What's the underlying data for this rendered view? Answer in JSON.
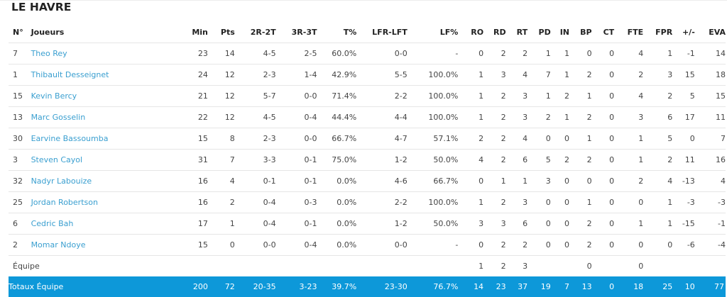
{
  "team_name": "LE HAVRE",
  "columns": [
    "N°",
    "Joueurs",
    "Min",
    "Pts",
    "2R-2T",
    "3R-3T",
    "T%",
    "LFR-LFT",
    "LF%",
    "RO",
    "RD",
    "RT",
    "PD",
    "IN",
    "BP",
    "CT",
    "FTE",
    "FPR",
    "+/-",
    "EVA"
  ],
  "players": [
    {
      "num": "7",
      "name": "Theo Rey",
      "min": "23",
      "pts": "14",
      "r2": "4-5",
      "r3": "2-5",
      "tpct": "60.0%",
      "lf": "0-0",
      "lfpct": "-",
      "ro": "0",
      "rd": "2",
      "rt": "2",
      "pd": "1",
      "in": "1",
      "bp": "0",
      "ct": "0",
      "fte": "4",
      "fpr": "1",
      "pm": "-1",
      "eva": "14"
    },
    {
      "num": "1",
      "name": "Thibault Desseignet",
      "min": "24",
      "pts": "12",
      "r2": "2-3",
      "r3": "1-4",
      "tpct": "42.9%",
      "lf": "5-5",
      "lfpct": "100.0%",
      "ro": "1",
      "rd": "3",
      "rt": "4",
      "pd": "7",
      "in": "1",
      "bp": "2",
      "ct": "0",
      "fte": "2",
      "fpr": "3",
      "pm": "15",
      "eva": "18"
    },
    {
      "num": "15",
      "name": "Kevin Bercy",
      "min": "21",
      "pts": "12",
      "r2": "5-7",
      "r3": "0-0",
      "tpct": "71.4%",
      "lf": "2-2",
      "lfpct": "100.0%",
      "ro": "1",
      "rd": "2",
      "rt": "3",
      "pd": "1",
      "in": "2",
      "bp": "1",
      "ct": "0",
      "fte": "4",
      "fpr": "2",
      "pm": "5",
      "eva": "15"
    },
    {
      "num": "13",
      "name": "Marc Gosselin",
      "min": "22",
      "pts": "12",
      "r2": "4-5",
      "r3": "0-4",
      "tpct": "44.4%",
      "lf": "4-4",
      "lfpct": "100.0%",
      "ro": "1",
      "rd": "2",
      "rt": "3",
      "pd": "2",
      "in": "1",
      "bp": "2",
      "ct": "0",
      "fte": "3",
      "fpr": "6",
      "pm": "17",
      "eva": "11"
    },
    {
      "num": "30",
      "name": "Earvine Bassoumba",
      "min": "15",
      "pts": "8",
      "r2": "2-3",
      "r3": "0-0",
      "tpct": "66.7%",
      "lf": "4-7",
      "lfpct": "57.1%",
      "ro": "2",
      "rd": "2",
      "rt": "4",
      "pd": "0",
      "in": "0",
      "bp": "1",
      "ct": "0",
      "fte": "1",
      "fpr": "5",
      "pm": "0",
      "eva": "7"
    },
    {
      "num": "3",
      "name": "Steven Cayol",
      "min": "31",
      "pts": "7",
      "r2": "3-3",
      "r3": "0-1",
      "tpct": "75.0%",
      "lf": "1-2",
      "lfpct": "50.0%",
      "ro": "4",
      "rd": "2",
      "rt": "6",
      "pd": "5",
      "in": "2",
      "bp": "2",
      "ct": "0",
      "fte": "1",
      "fpr": "2",
      "pm": "11",
      "eva": "16"
    },
    {
      "num": "32",
      "name": "Nadyr Labouize",
      "min": "16",
      "pts": "4",
      "r2": "0-1",
      "r3": "0-1",
      "tpct": "0.0%",
      "lf": "4-6",
      "lfpct": "66.7%",
      "ro": "0",
      "rd": "1",
      "rt": "1",
      "pd": "3",
      "in": "0",
      "bp": "0",
      "ct": "0",
      "fte": "2",
      "fpr": "4",
      "pm": "-13",
      "eva": "4"
    },
    {
      "num": "25",
      "name": "Jordan Robertson",
      "min": "16",
      "pts": "2",
      "r2": "0-4",
      "r3": "0-3",
      "tpct": "0.0%",
      "lf": "2-2",
      "lfpct": "100.0%",
      "ro": "1",
      "rd": "2",
      "rt": "3",
      "pd": "0",
      "in": "0",
      "bp": "1",
      "ct": "0",
      "fte": "0",
      "fpr": "1",
      "pm": "-3",
      "eva": "-3"
    },
    {
      "num": "6",
      "name": "Cedric Bah",
      "min": "17",
      "pts": "1",
      "r2": "0-4",
      "r3": "0-1",
      "tpct": "0.0%",
      "lf": "1-2",
      "lfpct": "50.0%",
      "ro": "3",
      "rd": "3",
      "rt": "6",
      "pd": "0",
      "in": "0",
      "bp": "2",
      "ct": "0",
      "fte": "1",
      "fpr": "1",
      "pm": "-15",
      "eva": "-1"
    },
    {
      "num": "2",
      "name": "Momar Ndoye",
      "min": "15",
      "pts": "0",
      "r2": "0-0",
      "r3": "0-4",
      "tpct": "0.0%",
      "lf": "0-0",
      "lfpct": "-",
      "ro": "0",
      "rd": "2",
      "rt": "2",
      "pd": "0",
      "in": "0",
      "bp": "2",
      "ct": "0",
      "fte": "0",
      "fpr": "0",
      "pm": "-6",
      "eva": "-4"
    }
  ],
  "team_row": {
    "label": "Équipe",
    "ro": "1",
    "rd": "2",
    "rt": "3",
    "bp": "0",
    "fte": "0"
  },
  "totals": {
    "label": "Totaux Équipe",
    "min": "200",
    "pts": "72",
    "r2": "20-35",
    "r3": "3-23",
    "tpct": "39.7%",
    "lf": "23-30",
    "lfpct": "76.7%",
    "ro": "14",
    "rd": "23",
    "rt": "37",
    "pd": "19",
    "in": "7",
    "bp": "13",
    "ct": "0",
    "fte": "18",
    "fpr": "25",
    "pm": "10",
    "eva": "77"
  },
  "colors": {
    "link": "#3a9fd0",
    "totals_bg": "#0d98d9"
  }
}
